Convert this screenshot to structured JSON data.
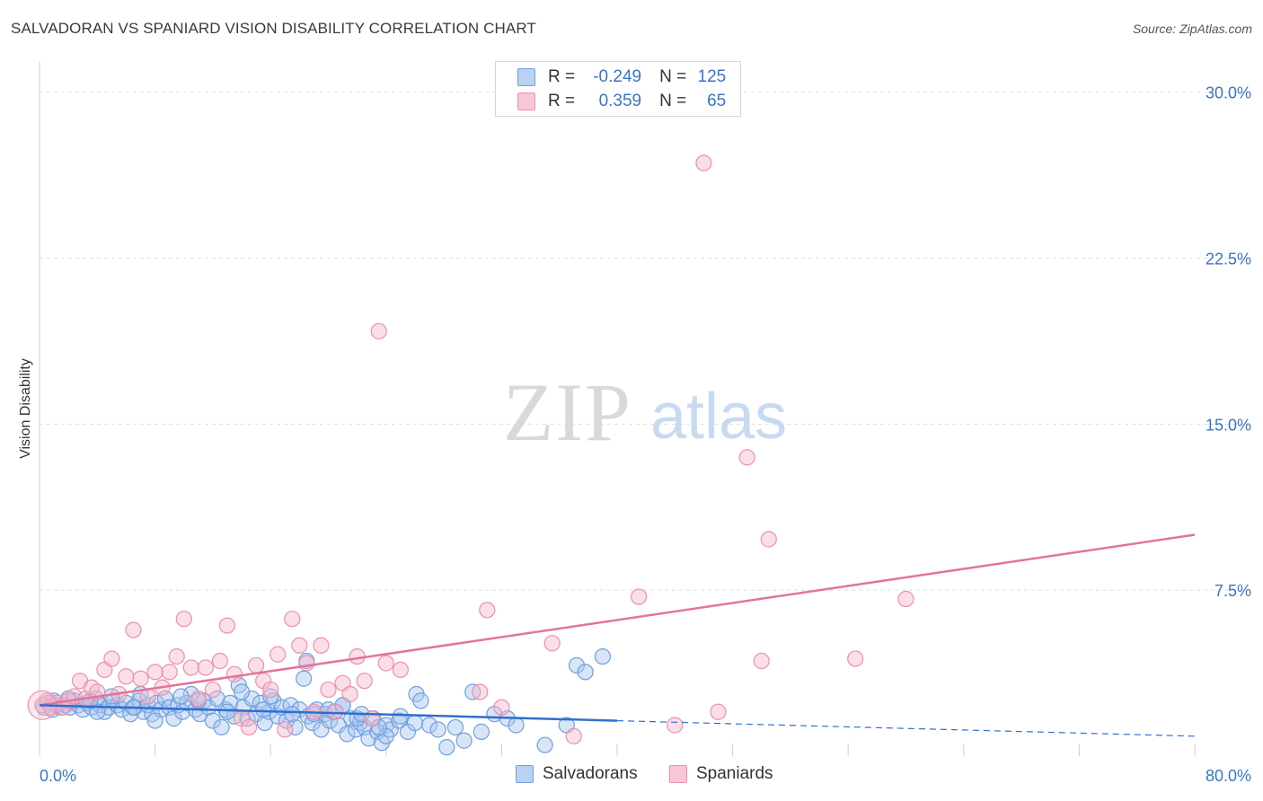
{
  "title": "SALVADORAN VS SPANIARD VISION DISABILITY CORRELATION CHART",
  "source": "Source: ZipAtlas.com",
  "watermark": {
    "zip": "ZIP",
    "atlas": "atlas"
  },
  "legend": {
    "r_label": "R =",
    "n_label": "N =",
    "rows": [
      {
        "r": "-0.249",
        "n": "125"
      },
      {
        "r": "0.359",
        "n": "65"
      }
    ]
  },
  "colors": {
    "blue_fill": "#a9c6ef",
    "blue_stroke": "#6f9fdc",
    "blue_line": "#2f6fce",
    "pink_fill": "#f5b9cc",
    "pink_stroke": "#ec8fad",
    "pink_line": "#e4739a",
    "tick_text": "#3a74c8",
    "grid": "#dedede"
  },
  "chart_data": {
    "type": "scatter",
    "title": "SALVADORAN VS SPANIARD VISION DISABILITY CORRELATION CHART",
    "xlabel": "",
    "ylabel": "Vision Disability",
    "xlim": [
      0,
      80
    ],
    "ylim": [
      0,
      31
    ],
    "x_tick_labels": [
      "0.0%",
      "80.0%"
    ],
    "y_ticks": [
      7.5,
      15.0,
      22.5,
      30.0
    ],
    "y_tick_labels": [
      "7.5%",
      "15.0%",
      "22.5%",
      "30.0%"
    ],
    "series": [
      {
        "name": "Salvadorans",
        "r": -0.249,
        "n": 125,
        "trend": {
          "x0": 0,
          "y0": 2.3,
          "x1": 40,
          "y1": 1.6,
          "dash_to_x": 80,
          "dash_to_y": 0.9
        },
        "points": [
          [
            0.3,
            2.2
          ],
          [
            0.6,
            2.4
          ],
          [
            0.9,
            2.1
          ],
          [
            1.2,
            2.3
          ],
          [
            1.5,
            2.2
          ],
          [
            1.8,
            2.3
          ],
          [
            2.1,
            2.2
          ],
          [
            2.4,
            2.5
          ],
          [
            2.7,
            2.3
          ],
          [
            3.0,
            2.1
          ],
          [
            3.3,
            2.4
          ],
          [
            3.6,
            2.2
          ],
          [
            3.9,
            2.6
          ],
          [
            4.2,
            2.3
          ],
          [
            4.5,
            2.0
          ],
          [
            4.8,
            2.2
          ],
          [
            5.1,
            2.5
          ],
          [
            5.4,
            2.3
          ],
          [
            5.7,
            2.1
          ],
          [
            6.0,
            2.4
          ],
          [
            6.3,
            1.9
          ],
          [
            6.6,
            2.2
          ],
          [
            6.9,
            2.5
          ],
          [
            7.2,
            2.0
          ],
          [
            7.5,
            2.3
          ],
          [
            7.8,
            1.9
          ],
          [
            8.1,
            2.4
          ],
          [
            8.4,
            2.1
          ],
          [
            8.7,
            2.6
          ],
          [
            9.0,
            2.2
          ],
          [
            9.3,
            1.7
          ],
          [
            9.6,
            2.3
          ],
          [
            9.9,
            2.0
          ],
          [
            10.2,
            2.4
          ],
          [
            10.5,
            2.8
          ],
          [
            10.8,
            2.1
          ],
          [
            11.1,
            1.9
          ],
          [
            11.4,
            2.5
          ],
          [
            11.7,
            2.2
          ],
          [
            12.0,
            1.6
          ],
          [
            12.3,
            2.6
          ],
          [
            12.6,
            1.3
          ],
          [
            12.9,
            2.1
          ],
          [
            13.2,
            2.4
          ],
          [
            13.5,
            1.8
          ],
          [
            13.8,
            3.2
          ],
          [
            14.1,
            2.2
          ],
          [
            14.4,
            1.7
          ],
          [
            14.7,
            2.6
          ],
          [
            15.0,
            1.9
          ],
          [
            15.3,
            2.4
          ],
          [
            15.6,
            1.5
          ],
          [
            15.9,
            2.0
          ],
          [
            16.2,
            2.5
          ],
          [
            16.5,
            1.8
          ],
          [
            16.8,
            2.2
          ],
          [
            17.1,
            1.6
          ],
          [
            17.4,
            2.3
          ],
          [
            17.7,
            1.3
          ],
          [
            18.0,
            2.1
          ],
          [
            18.3,
            3.5
          ],
          [
            18.6,
            1.8
          ],
          [
            18.9,
            1.5
          ],
          [
            19.2,
            2.1
          ],
          [
            19.5,
            1.2
          ],
          [
            19.8,
            1.9
          ],
          [
            20.1,
            1.6
          ],
          [
            20.4,
            2.0
          ],
          [
            20.7,
            1.4
          ],
          [
            21.0,
            2.3
          ],
          [
            21.3,
            1.0
          ],
          [
            21.6,
            1.7
          ],
          [
            21.9,
            1.2
          ],
          [
            22.2,
            1.5
          ],
          [
            22.5,
            1.3
          ],
          [
            22.8,
            0.8
          ],
          [
            23.1,
            1.7
          ],
          [
            23.4,
            1.1
          ],
          [
            23.7,
            0.6
          ],
          [
            24.0,
            1.4
          ],
          [
            24.3,
            1.2
          ],
          [
            24.9,
            1.6
          ],
          [
            25.5,
            1.1
          ],
          [
            26.1,
            2.8
          ],
          [
            26.4,
            2.5
          ],
          [
            27.0,
            1.4
          ],
          [
            27.6,
            1.2
          ],
          [
            28.2,
            0.4
          ],
          [
            28.8,
            1.3
          ],
          [
            29.4,
            0.7
          ],
          [
            30.0,
            2.9
          ],
          [
            30.6,
            1.1
          ],
          [
            31.5,
            1.9
          ],
          [
            32.4,
            1.7
          ],
          [
            33.0,
            1.4
          ],
          [
            35.0,
            0.5
          ],
          [
            36.5,
            1.4
          ],
          [
            37.2,
            4.1
          ],
          [
            37.8,
            3.8
          ],
          [
            39.0,
            4.5
          ],
          [
            9.8,
            2.7
          ],
          [
            11.0,
            2.5
          ],
          [
            13.0,
            2.0
          ],
          [
            16.0,
            2.7
          ],
          [
            19.0,
            1.9
          ],
          [
            21.0,
            2.3
          ],
          [
            22.0,
            1.7
          ],
          [
            24.0,
            0.9
          ],
          [
            25.0,
            1.8
          ],
          [
            26.0,
            1.5
          ],
          [
            8.0,
            1.6
          ],
          [
            7.0,
            2.8
          ],
          [
            6.5,
            2.2
          ],
          [
            5.0,
            2.7
          ],
          [
            4.0,
            2.0
          ],
          [
            3.5,
            2.5
          ],
          [
            2.0,
            2.6
          ],
          [
            1.0,
            2.5
          ],
          [
            14.0,
            2.9
          ],
          [
            15.5,
            2.1
          ],
          [
            17.5,
            1.9
          ],
          [
            18.5,
            4.3
          ],
          [
            20.0,
            2.1
          ],
          [
            22.3,
            1.9
          ],
          [
            23.5,
            1.3
          ]
        ]
      },
      {
        "name": "Spaniards",
        "r": 0.359,
        "n": 65,
        "trend": {
          "x0": 0,
          "y0": 2.3,
          "x1": 80,
          "y1": 10.0
        },
        "points": [
          [
            0.2,
            2.3
          ],
          [
            0.5,
            2.5
          ],
          [
            0.8,
            2.2
          ],
          [
            1.2,
            2.4
          ],
          [
            1.6,
            2.2
          ],
          [
            2.0,
            2.5
          ],
          [
            2.4,
            2.7
          ],
          [
            2.8,
            3.4
          ],
          [
            3.2,
            2.6
          ],
          [
            3.6,
            3.1
          ],
          [
            4.0,
            2.9
          ],
          [
            4.5,
            3.9
          ],
          [
            5.0,
            4.4
          ],
          [
            5.5,
            2.8
          ],
          [
            6.0,
            3.6
          ],
          [
            6.5,
            5.7
          ],
          [
            7.0,
            3.5
          ],
          [
            7.5,
            2.7
          ],
          [
            8.0,
            3.8
          ],
          [
            8.5,
            3.1
          ],
          [
            9.0,
            3.8
          ],
          [
            9.5,
            4.5
          ],
          [
            10.0,
            6.2
          ],
          [
            10.5,
            4.0
          ],
          [
            11.0,
            2.6
          ],
          [
            11.5,
            4.0
          ],
          [
            12.0,
            3.0
          ],
          [
            12.5,
            4.3
          ],
          [
            13.0,
            5.9
          ],
          [
            13.5,
            3.7
          ],
          [
            14.0,
            1.7
          ],
          [
            14.5,
            1.3
          ],
          [
            15.0,
            4.1
          ],
          [
            15.5,
            3.4
          ],
          [
            16.0,
            3.0
          ],
          [
            16.5,
            4.6
          ],
          [
            17.0,
            1.2
          ],
          [
            17.5,
            6.2
          ],
          [
            18.0,
            5.0
          ],
          [
            18.5,
            4.2
          ],
          [
            19.0,
            2.0
          ],
          [
            19.5,
            5.0
          ],
          [
            20.0,
            3.0
          ],
          [
            20.5,
            2.0
          ],
          [
            21.0,
            3.3
          ],
          [
            21.5,
            2.8
          ],
          [
            22.0,
            4.5
          ],
          [
            22.5,
            3.4
          ],
          [
            23.0,
            1.7
          ],
          [
            24.0,
            4.2
          ],
          [
            25.0,
            3.9
          ],
          [
            30.5,
            2.9
          ],
          [
            31.0,
            6.6
          ],
          [
            32.0,
            2.2
          ],
          [
            35.5,
            5.1
          ],
          [
            37.0,
            0.9
          ],
          [
            41.5,
            7.2
          ],
          [
            44.0,
            1.4
          ],
          [
            47.0,
            2.0
          ],
          [
            49.0,
            13.5
          ],
          [
            50.0,
            4.3
          ],
          [
            50.5,
            9.8
          ],
          [
            56.5,
            4.4
          ],
          [
            60.0,
            7.1
          ],
          [
            46.0,
            26.8
          ]
        ],
        "extra_points": [
          [
            23.5,
            19.2
          ]
        ]
      }
    ]
  },
  "bottom_legend": [
    "Salvadorans",
    "Spaniards"
  ]
}
